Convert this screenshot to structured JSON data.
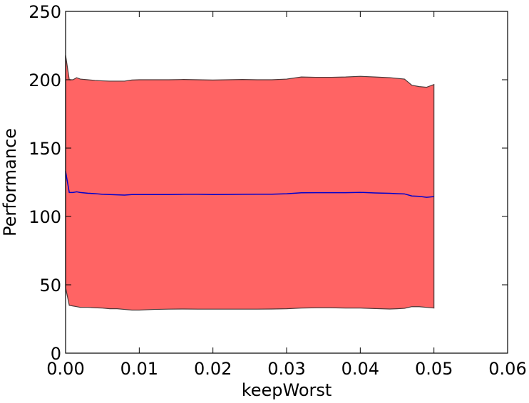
{
  "chart_data": {
    "type": "area",
    "title": "",
    "xlabel": "keepWorst",
    "ylabel": "Performance",
    "xlim": [
      0.0,
      0.06
    ],
    "ylim": [
      0,
      250
    ],
    "x_ticks": [
      0.0,
      0.01,
      0.02,
      0.03,
      0.04,
      0.05,
      0.06
    ],
    "x_tick_labels": [
      "0.00",
      "0.01",
      "0.02",
      "0.03",
      "0.04",
      "0.05",
      "0.06"
    ],
    "y_ticks": [
      0,
      50,
      100,
      150,
      200,
      250
    ],
    "y_tick_labels": [
      "0",
      "50",
      "100",
      "150",
      "200",
      "250"
    ],
    "grid": false,
    "colors": {
      "band_fill": "#ff6464",
      "band_edge": "#4a3a3a",
      "mean_line": "#0000cc",
      "axes": "#000000"
    },
    "x": [
      0.0,
      0.0005,
      0.001,
      0.0015,
      0.002,
      0.003,
      0.004,
      0.005,
      0.006,
      0.007,
      0.008,
      0.009,
      0.01,
      0.012,
      0.014,
      0.016,
      0.018,
      0.02,
      0.022,
      0.024,
      0.026,
      0.028,
      0.03,
      0.032,
      0.034,
      0.036,
      0.038,
      0.04,
      0.042,
      0.044,
      0.045,
      0.046,
      0.047,
      0.048,
      0.049,
      0.05
    ],
    "series": [
      {
        "role": "upper",
        "values": [
          218,
          200,
          200,
          201.5,
          200.5,
          200,
          199.5,
          199.2,
          199,
          199,
          199,
          199.8,
          200,
          200,
          200,
          200.2,
          200,
          199.8,
          200,
          200.2,
          200,
          200,
          200.5,
          202,
          201.8,
          201.8,
          202,
          202.5,
          202,
          201.5,
          201,
          200.5,
          196,
          195,
          194.5,
          196.5
        ]
      },
      {
        "role": "mean",
        "values": [
          133,
          117.5,
          117.5,
          118,
          117.5,
          117,
          116.7,
          116.2,
          116,
          115.8,
          115.6,
          116,
          116,
          116,
          116,
          116.2,
          116.2,
          116,
          116.1,
          116.2,
          116.3,
          116.3,
          116.6,
          117.3,
          117.4,
          117.4,
          117.4,
          117.6,
          117.2,
          116.9,
          116.7,
          116.5,
          115,
          114.7,
          114,
          114.5
        ]
      },
      {
        "role": "lower",
        "values": [
          48,
          35,
          34.5,
          34,
          33.5,
          33.5,
          33.2,
          33,
          32.5,
          32.5,
          32,
          31.5,
          31.5,
          32,
          32.2,
          32.3,
          32.2,
          32.2,
          32.2,
          32.2,
          32.2,
          32.3,
          32.5,
          33,
          33.2,
          33.2,
          33,
          33,
          32.6,
          32.3,
          32.5,
          32.8,
          34,
          34,
          33.5,
          33
        ]
      }
    ]
  }
}
